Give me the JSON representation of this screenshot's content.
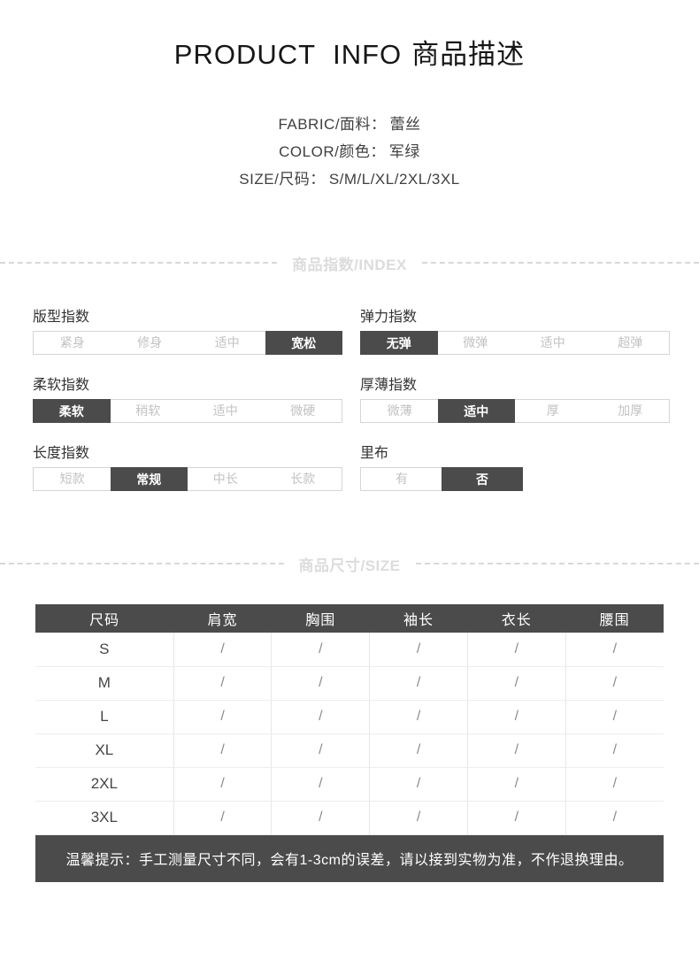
{
  "header": {
    "title_en": "PRODUCT INFO",
    "title_zh": "商品描述"
  },
  "specs": [
    {
      "label": "FABRIC/面料：",
      "value": "蕾丝"
    },
    {
      "label": "COLOR/颜色：",
      "value": "军绿"
    },
    {
      "label": "SIZE/尺码：",
      "value": "S/M/L/XL/2XL/3XL"
    }
  ],
  "dividers": {
    "index_title": "商品指数/INDEX",
    "size_title": "商品尺寸/SIZE"
  },
  "index_sections": [
    {
      "title": "版型指数",
      "options": [
        "紧身",
        "修身",
        "适中",
        "宽松"
      ],
      "active": 3
    },
    {
      "title": "弹力指数",
      "options": [
        "无弹",
        "微弹",
        "适中",
        "超弹"
      ],
      "active": 0
    },
    {
      "title": "柔软指数",
      "options": [
        "柔软",
        "稍软",
        "适中",
        "微硬"
      ],
      "active": 0
    },
    {
      "title": "厚薄指数",
      "options": [
        "微薄",
        "适中",
        "厚",
        "加厚"
      ],
      "active": 1
    },
    {
      "title": "长度指数",
      "options": [
        "短款",
        "常规",
        "中长",
        "长款"
      ],
      "active": 1
    },
    {
      "title": "里布",
      "options": [
        "有",
        "否"
      ],
      "active": 1
    }
  ],
  "size_table": {
    "headers": [
      "尺码",
      "肩宽",
      "胸围",
      "袖长",
      "衣长",
      "腰围"
    ],
    "rows": [
      [
        "S",
        "/",
        "/",
        "/",
        "/",
        "/"
      ],
      [
        "M",
        "/",
        "/",
        "/",
        "/",
        "/"
      ],
      [
        "L",
        "/",
        "/",
        "/",
        "/",
        "/"
      ],
      [
        "XL",
        "/",
        "/",
        "/",
        "/",
        "/"
      ],
      [
        "2XL",
        "/",
        "/",
        "/",
        "/",
        "/"
      ],
      [
        "3XL",
        "/",
        "/",
        "/",
        "/",
        "/"
      ]
    ]
  },
  "footer_note": "温馨提示：手工测量尺寸不同，会有1-3cm的误差，请以接到实物为准，不作退换理由。",
  "colors": {
    "accent_dark": "#4b4b4b",
    "bar_border": "#d5d5d5",
    "inactive_option_text": "#c2c2c2",
    "divider_text": "#dcdcdc",
    "table_border": "#e7e7e7"
  }
}
